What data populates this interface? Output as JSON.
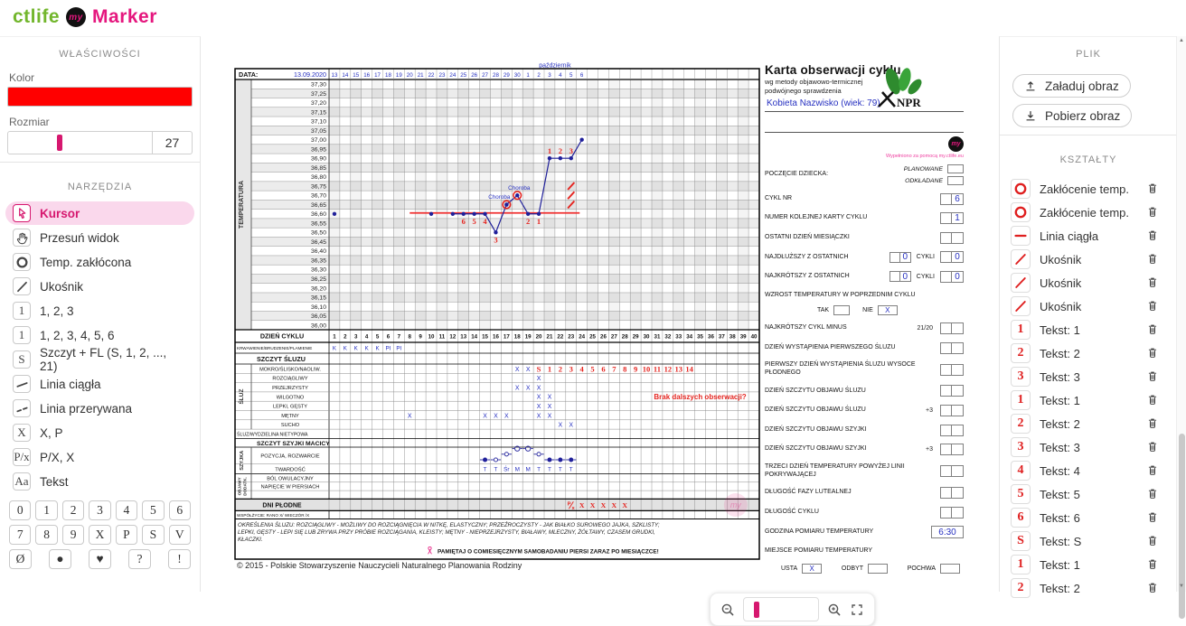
{
  "colors": {
    "accent": "#e5177e",
    "brand_green": "#72b62c",
    "tool_red": "#df1f1f",
    "chart_blue": "#2630c0",
    "chart_navy": "#20209a",
    "annotation_red": "#e52520",
    "swatch": "#ff0000"
  },
  "header": {
    "brand": "ctlife",
    "app": "Marker"
  },
  "left_panel": {
    "properties_title": "WŁAŚCIWOŚCI",
    "color_label": "Kolor",
    "color_value": "#ff0000",
    "size_label": "Rozmiar",
    "size_value": "27",
    "tools_title": "NARZĘDZIA",
    "tools": [
      {
        "icon": "svg:cursor",
        "label": "Kursor",
        "selected": true
      },
      {
        "icon": "svg:hand",
        "label": "Przesuń widok"
      },
      {
        "icon": "svg:ring",
        "label": "Temp. zakłócona"
      },
      {
        "icon": "svg:slash",
        "label": "Ukośnik"
      },
      {
        "icon": "text:1",
        "label": "1, 2, 3"
      },
      {
        "icon": "text:1",
        "label": "1, 2, 3, 4, 5, 6"
      },
      {
        "icon": "text:S",
        "label": "Szczyt + FL (S, 1, 2, ..., 21)"
      },
      {
        "icon": "svg:line",
        "label": "Linia ciągła"
      },
      {
        "icon": "svg:dashline",
        "label": "Linia przerywana"
      },
      {
        "icon": "text:X",
        "label": "X, P"
      },
      {
        "icon": "text:P/x",
        "label": "P/X, X"
      },
      {
        "icon": "text:Aa",
        "label": "Tekst"
      }
    ],
    "stamps": [
      "0",
      "1",
      "2",
      "3",
      "4",
      "5",
      "6",
      "7",
      "8",
      "9",
      "X",
      "P",
      "S",
      "V"
    ],
    "stamps_last": [
      "Ø",
      "●",
      "♥",
      "?",
      "!"
    ]
  },
  "right_panel": {
    "file_title": "PLIK",
    "load_button": "Załaduj obraz",
    "download_button": "Pobierz obraz",
    "shapes_title": "KSZTAŁTY",
    "shapes": [
      {
        "icon": "svg:ring",
        "label": "Zakłócenie temp."
      },
      {
        "icon": "svg:ring",
        "label": "Zakłócenie temp."
      },
      {
        "icon": "svg:lineh",
        "label": "Linia ciągła"
      },
      {
        "icon": "svg:slash",
        "label": "Ukośnik"
      },
      {
        "icon": "svg:slash",
        "label": "Ukośnik"
      },
      {
        "icon": "svg:slash",
        "label": "Ukośnik"
      },
      {
        "icon": "text:1",
        "label": "Tekst: 1"
      },
      {
        "icon": "text:2",
        "label": "Tekst: 2"
      },
      {
        "icon": "text:3",
        "label": "Tekst: 3"
      },
      {
        "icon": "text:1",
        "label": "Tekst: 1"
      },
      {
        "icon": "text:2",
        "label": "Tekst: 2"
      },
      {
        "icon": "text:3",
        "label": "Tekst: 3"
      },
      {
        "icon": "text:4",
        "label": "Tekst: 4"
      },
      {
        "icon": "text:5",
        "label": "Tekst: 5"
      },
      {
        "icon": "text:6",
        "label": "Tekst: 6"
      },
      {
        "icon": "text:S",
        "label": "Tekst: S"
      },
      {
        "icon": "text:1",
        "label": "Tekst: 1"
      },
      {
        "icon": "text:2",
        "label": "Tekst: 2"
      }
    ]
  },
  "chart_data": {
    "type": "line",
    "data_label": "DATA:",
    "start_date": "13.09.2020",
    "month_label": "październik",
    "dates": [
      "13",
      "14",
      "15",
      "16",
      "17",
      "18",
      "19",
      "20",
      "21",
      "22",
      "23",
      "24",
      "25",
      "26",
      "27",
      "28",
      "29",
      "30",
      "1",
      "2",
      "3",
      "4",
      "5",
      "6"
    ],
    "temp_axis": {
      "label": "TEMPERATURA",
      "max": 37.3,
      "min": 36.0,
      "step": 0.05
    },
    "day_row_label": "DZIEŃ CYKLU",
    "days": 40,
    "bleeding": {
      "label": "KRWAWIENIE/BRUDZENIE/PLAMIENIE",
      "marks": {
        "1": "K",
        "2": "K",
        "3": "K",
        "4": "K",
        "5": "K",
        "6": "PI",
        "7": "PI"
      }
    },
    "points": [
      {
        "day": 1,
        "temp": 36.6
      },
      {
        "day": 10,
        "temp": 36.6
      },
      {
        "day": 12,
        "temp": 36.6
      },
      {
        "day": 13,
        "temp": 36.6,
        "label_below": "6"
      },
      {
        "day": 14,
        "temp": 36.6,
        "label_below": "5"
      },
      {
        "day": 15,
        "temp": 36.6,
        "label_below": "4"
      },
      {
        "day": 16,
        "temp": 36.5,
        "label_below": "3"
      },
      {
        "day": 17,
        "temp": 36.65,
        "ring": true,
        "note": "Choroba"
      },
      {
        "day": 18,
        "temp": 36.7,
        "ring": true,
        "note": "Choroba"
      },
      {
        "day": 19,
        "temp": 36.6,
        "label_below": "2"
      },
      {
        "day": 20,
        "temp": 36.6,
        "label_below": "1"
      },
      {
        "day": 21,
        "temp": 36.9,
        "label_above": "1"
      },
      {
        "day": 22,
        "temp": 36.9,
        "label_above": "2"
      },
      {
        "day": 23,
        "temp": 36.9,
        "label_above": "3"
      },
      {
        "day": 24,
        "temp": 37.0
      }
    ],
    "line_days": [
      12,
      24
    ],
    "cover_line": {
      "from_day": 8,
      "to_day": 23.8,
      "temp": 36.605
    },
    "slashes": [
      {
        "day": 23,
        "temp": 36.65
      },
      {
        "day": 23,
        "temp": 36.7
      },
      {
        "day": 23,
        "temp": 36.75
      }
    ],
    "mucus_header": "SZCZYT ŚLUZU",
    "mucus_group": "ŚLUZ",
    "mucus_rows": [
      {
        "label": "MOKRO/ŚLISKO/NAOLIW.",
        "x_marks": [
          18,
          19
        ],
        "red_marks": {
          "20": "S",
          "21": "1",
          "22": "2",
          "23": "3",
          "24": "4",
          "25": "5",
          "26": "6",
          "27": "7",
          "28": "8",
          "29": "9",
          "30": "10",
          "31": "11",
          "32": "12",
          "33": "13",
          "34": "14"
        }
      },
      {
        "label": "ROZCIĄGLIWY",
        "x_marks": [
          20
        ]
      },
      {
        "label": "PRZEJRZYSTY",
        "x_marks": [
          18,
          19,
          20
        ]
      },
      {
        "label": "WILGOTNO",
        "x_marks": [
          20,
          21
        ],
        "note": "Brak dalszych obserwacji?",
        "note_day": 35
      },
      {
        "label": "LEPKI, GĘSTY",
        "x_marks": [
          20,
          21
        ]
      },
      {
        "label": "MĘTNY",
        "x_marks": [
          8,
          15,
          16,
          17,
          20,
          21
        ]
      },
      {
        "label": "SUCHO",
        "x_marks": [
          22,
          23
        ]
      }
    ],
    "atypical_row_label": "ŚLUZ/WYDZIELINA NIETYPOWA",
    "cervix_header": "SZCZYT SZYJKI MACICY",
    "cervix_group": "SZYJKA",
    "position_row": {
      "label": "POZYCJA, ROZWARCIE",
      "symbols": [
        {
          "day": 15,
          "level": 0,
          "filled": true
        },
        {
          "day": 16,
          "level": 0,
          "filled": false
        },
        {
          "day": 17,
          "level": 1,
          "filled": false
        },
        {
          "day": 18,
          "level": 2,
          "filled": false
        },
        {
          "day": 19,
          "level": 2,
          "filled": false
        },
        {
          "day": 20,
          "level": 1,
          "filled": false
        },
        {
          "day": 21,
          "level": 0,
          "filled": true
        },
        {
          "day": 22,
          "level": 0,
          "filled": true
        },
        {
          "day": 23,
          "level": 0,
          "filled": true
        }
      ]
    },
    "firmness_row": {
      "label": "TWARDOŚĆ",
      "marks": {
        "15": "T",
        "16": "T",
        "17": "Śr",
        "18": "M",
        "19": "M",
        "20": "T",
        "21": "T",
        "22": "T",
        "23": "T"
      }
    },
    "extra_group": "OBJAWY DODATK.",
    "extra_rows": [
      "BÓL OWULACYJNY",
      "NAPIĘCIE W PIERSIACH",
      ""
    ],
    "fertile_row": {
      "label": "DNI PŁODNE",
      "marks": {
        "23": "P/x",
        "24": "X",
        "25": "X",
        "26": "X",
        "27": "X",
        "28": "X"
      }
    },
    "intercourse_label": "WSPÓŁŻYCIE: RANO X/ WIECZÓR /X",
    "legend_lines": [
      "OKREŚLENIA ŚLUZU: ROZCIĄGLIWY - MOŻLIWY DO ROZCIĄGNIĘCIA W NITKĘ, ELASTYCZNY; PRZEŹROCZYSTY - JAK BIAŁKO SUROWEGO JAJKA, SZKLISTY;",
      "LEPKI, GĘSTY - LEPI SIĘ LUB ZRYWA PRZY PRÓBIE ROZCIĄGANIA, KLEISTY; MĘTNY - NIEPRZEJRZYSTY, BIAŁAWY, MLECZNY, ŻÓŁTAWY, CZASEM GRUDKI,",
      "KŁACZKI."
    ],
    "reminder": "PAMIĘTAJ O COMIESIĘCZNYM SAMOBADANIU PIERSI ZARAZ PO MIESIĄCZCE!",
    "copyright": "© 2015 - Polskie Stowarzyszenie Nauczycieli Naturalnego Planowania Rodziny"
  },
  "form": {
    "title": "Karta obserwacji cyklu",
    "subtitle1": "wg metody objawowo-termicznej",
    "subtitle2": "podwójnego sprawdzenia",
    "name": "Kobieta Nazwisko (wiek: 79)",
    "npr_text": "NPR",
    "watermark": "Wypełniono za pomocą my.ctlife.eu",
    "rows": [
      {
        "type": "stack2",
        "label": "POCZĘCIE DZIECKA:",
        "options": [
          {
            "label": "PLANOWANE",
            "value": ""
          },
          {
            "label": "ODKŁADANE",
            "value": ""
          }
        ]
      },
      {
        "type": "pair",
        "label": "CYKL NR",
        "values": [
          "",
          "6"
        ]
      },
      {
        "type": "pair",
        "label": "NUMER KOLEJNEJ KARTY CYKLU",
        "values": [
          "",
          "1"
        ]
      },
      {
        "type": "pair",
        "label": "OSTATNI DZIEŃ MIESIĄCZKI",
        "values": [
          "",
          ""
        ]
      },
      {
        "type": "pairmid",
        "label": "NAJDŁUŻSZY Z OSTATNICH",
        "mid_values": [
          "",
          "0"
        ],
        "mid_label": "CYKLI",
        "values": [
          "",
          "0"
        ]
      },
      {
        "type": "pairmid",
        "label": "NAJKRÓTSZY Z OSTATNICH",
        "mid_values": [
          "",
          "0"
        ],
        "mid_label": "CYKLI",
        "values": [
          "",
          "0"
        ]
      },
      {
        "type": "text",
        "label": "WZROST TEMPERATURY W POPRZEDNIM CYKLU"
      },
      {
        "type": "yesno",
        "yes_label": "TAK",
        "yes_value": "",
        "no_label": "NIE",
        "no_value": "X"
      },
      {
        "type": "pair",
        "label": "NAJKRÓTSZY CYKL MINUS",
        "sub": "21/20",
        "values": [
          "",
          ""
        ]
      },
      {
        "type": "pair",
        "label": "DZIEŃ WYSTĄPIENIA PIERWSZEGO ŚLUZU",
        "values": [
          "",
          ""
        ]
      },
      {
        "type": "pair",
        "label": "PIERWSZY DZIEŃ WYSTĄPIENIA ŚLUZU WYSOCE PŁODNEGO",
        "values": [
          "",
          ""
        ]
      },
      {
        "type": "pair",
        "label": "DZIEŃ SZCZYTU OBJAWU ŚLUZU",
        "values": [
          "",
          ""
        ]
      },
      {
        "type": "pair",
        "label": "DZIEŃ SZCZYTU OBJAWU ŚLUZU",
        "sub": "+3",
        "values": [
          "",
          ""
        ]
      },
      {
        "type": "pair",
        "label": "DZIEŃ SZCZYTU OBJAWU SZYJKI",
        "values": [
          "",
          ""
        ]
      },
      {
        "type": "pair",
        "label": "DZIEŃ SZCZYTU OBJAWU SZYJKI",
        "sub": "+3",
        "values": [
          "",
          ""
        ]
      },
      {
        "type": "pair",
        "label": "TRZECI DZIEŃ TEMPERATURY POWYŻEJ LINII POKRYWAJĄCEJ",
        "values": [
          "",
          ""
        ]
      },
      {
        "type": "pair",
        "label": "DŁUGOŚĆ FAZY LUTEALNEJ",
        "values": [
          "",
          ""
        ]
      },
      {
        "type": "pair",
        "label": "DŁUGOŚĆ CYKLU",
        "values": [
          "",
          ""
        ]
      },
      {
        "type": "wide",
        "label": "GODZINA POMIARU TEMPERATURY",
        "value": "6:30"
      },
      {
        "type": "text",
        "label": "MIEJSCE POMIARU TEMPERATURY"
      },
      {
        "type": "places",
        "options": [
          {
            "label": "USTA",
            "value": "X"
          },
          {
            "label": "ODBYT",
            "value": ""
          },
          {
            "label": "POCHWA",
            "value": ""
          }
        ]
      }
    ]
  }
}
